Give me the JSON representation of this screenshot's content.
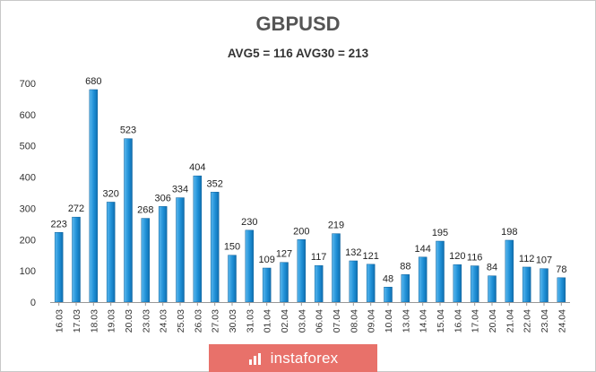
{
  "chart_data": {
    "type": "bar",
    "title": "GBPUSD",
    "subtitle": "AVG5 = 116 AVG30 = 213",
    "categories": [
      "16.03",
      "17.03",
      "18.03",
      "19.03",
      "20.03",
      "23.03",
      "24.03",
      "25.03",
      "26.03",
      "27.03",
      "30.03",
      "31.03",
      "01.04",
      "02.04",
      "03.04",
      "06.04",
      "07.04",
      "08.04",
      "09.04",
      "10.04",
      "13.04",
      "14.04",
      "15.04",
      "16.04",
      "17.04",
      "20.04",
      "21.04",
      "22.04",
      "23.04",
      "24.04"
    ],
    "values": [
      223,
      272,
      680,
      320,
      523,
      268,
      306,
      334,
      404,
      352,
      150,
      230,
      109,
      127,
      200,
      117,
      219,
      132,
      121,
      48,
      88,
      144,
      195,
      120,
      116,
      84,
      198,
      112,
      107,
      78
    ],
    "yticks": [
      0,
      100,
      200,
      300,
      400,
      500,
      600,
      700
    ],
    "ylim": [
      0,
      700
    ],
    "xlabel": "",
    "ylabel": "",
    "grid": false,
    "bar_color": "#1f8fd6"
  },
  "watermark": {
    "text": "instaforex",
    "color": "#e8716a",
    "icon": "bar-chart-logo-icon"
  }
}
